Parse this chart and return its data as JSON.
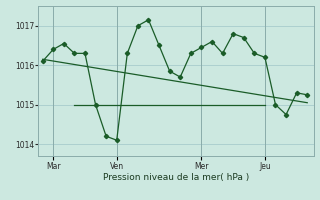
{
  "title": "",
  "xlabel": "Pression niveau de la mer( hPa )",
  "background_color": "#cce8e0",
  "grid_color": "#a8cccc",
  "line_color": "#1a5c28",
  "yticks": [
    1014,
    1015,
    1016,
    1017
  ],
  "ylim": [
    1013.7,
    1017.5
  ],
  "day_labels": [
    "Mar",
    "Ven",
    "Mer",
    "Jeu"
  ],
  "day_positions": [
    0.5,
    3.5,
    7.5,
    10.5
  ],
  "day_vlines": [
    0.5,
    3.5,
    7.5,
    10.5
  ],
  "series1_x": [
    0.0,
    0.5,
    1.0,
    1.5,
    2.0,
    2.5,
    3.0,
    3.5,
    4.0,
    4.5,
    5.0,
    5.5,
    6.0,
    6.5,
    7.0,
    7.5,
    8.0,
    8.5,
    9.0,
    9.5,
    10.0,
    10.5,
    11.0,
    11.5,
    12.0,
    12.5
  ],
  "series1_y": [
    1016.1,
    1016.4,
    1016.55,
    1016.3,
    1016.3,
    1015.0,
    1014.2,
    1014.1,
    1016.3,
    1017.0,
    1017.15,
    1016.5,
    1015.85,
    1015.7,
    1016.3,
    1016.45,
    1016.6,
    1016.3,
    1016.8,
    1016.7,
    1016.3,
    1016.2,
    1015.0,
    1014.75,
    1015.3,
    1015.25
  ],
  "series2_x": [
    0.0,
    12.5
  ],
  "series2_y": [
    1016.15,
    1015.05
  ],
  "series3_x": [
    1.5,
    10.5
  ],
  "series3_y": [
    1015.0,
    1015.0
  ],
  "xlim": [
    -0.2,
    12.8
  ]
}
